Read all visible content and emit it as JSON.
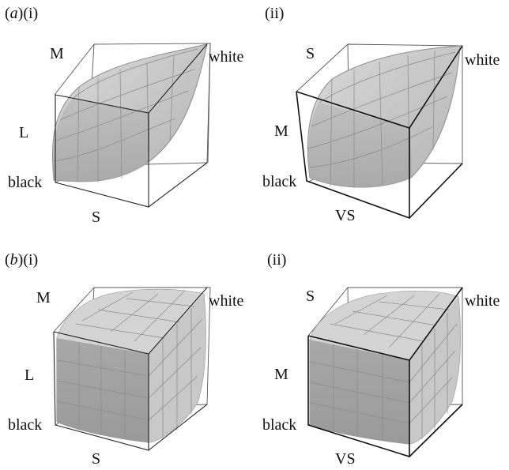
{
  "figure": {
    "row_a": {
      "label_letter": "a",
      "panel_i": {
        "numeral": "(i)",
        "axes": {
          "top": "M",
          "left": "L",
          "corner_bottom": "black",
          "bottom": "S",
          "corner_top": "white"
        }
      },
      "panel_ii": {
        "numeral": "(ii)",
        "axes": {
          "top": "S",
          "left": "M",
          "corner_bottom": "black",
          "bottom": "VS",
          "corner_top": "white"
        }
      }
    },
    "row_b": {
      "label_letter": "b",
      "panel_i": {
        "numeral": "(i)",
        "axes": {
          "top": "M",
          "left": "L",
          "corner_bottom": "black",
          "bottom": "S",
          "corner_top": "white"
        }
      },
      "panel_ii": {
        "numeral": "(ii)",
        "axes": {
          "top": "S",
          "left": "M",
          "corner_bottom": "black",
          "bottom": "VS",
          "corner_top": "white"
        }
      }
    },
    "colors": {
      "surface": "#c6c6c6",
      "surface_dark": "#9c9c9c",
      "surface_light": "#d8d8d8",
      "mesh": "#888888",
      "box": "#333333"
    }
  }
}
